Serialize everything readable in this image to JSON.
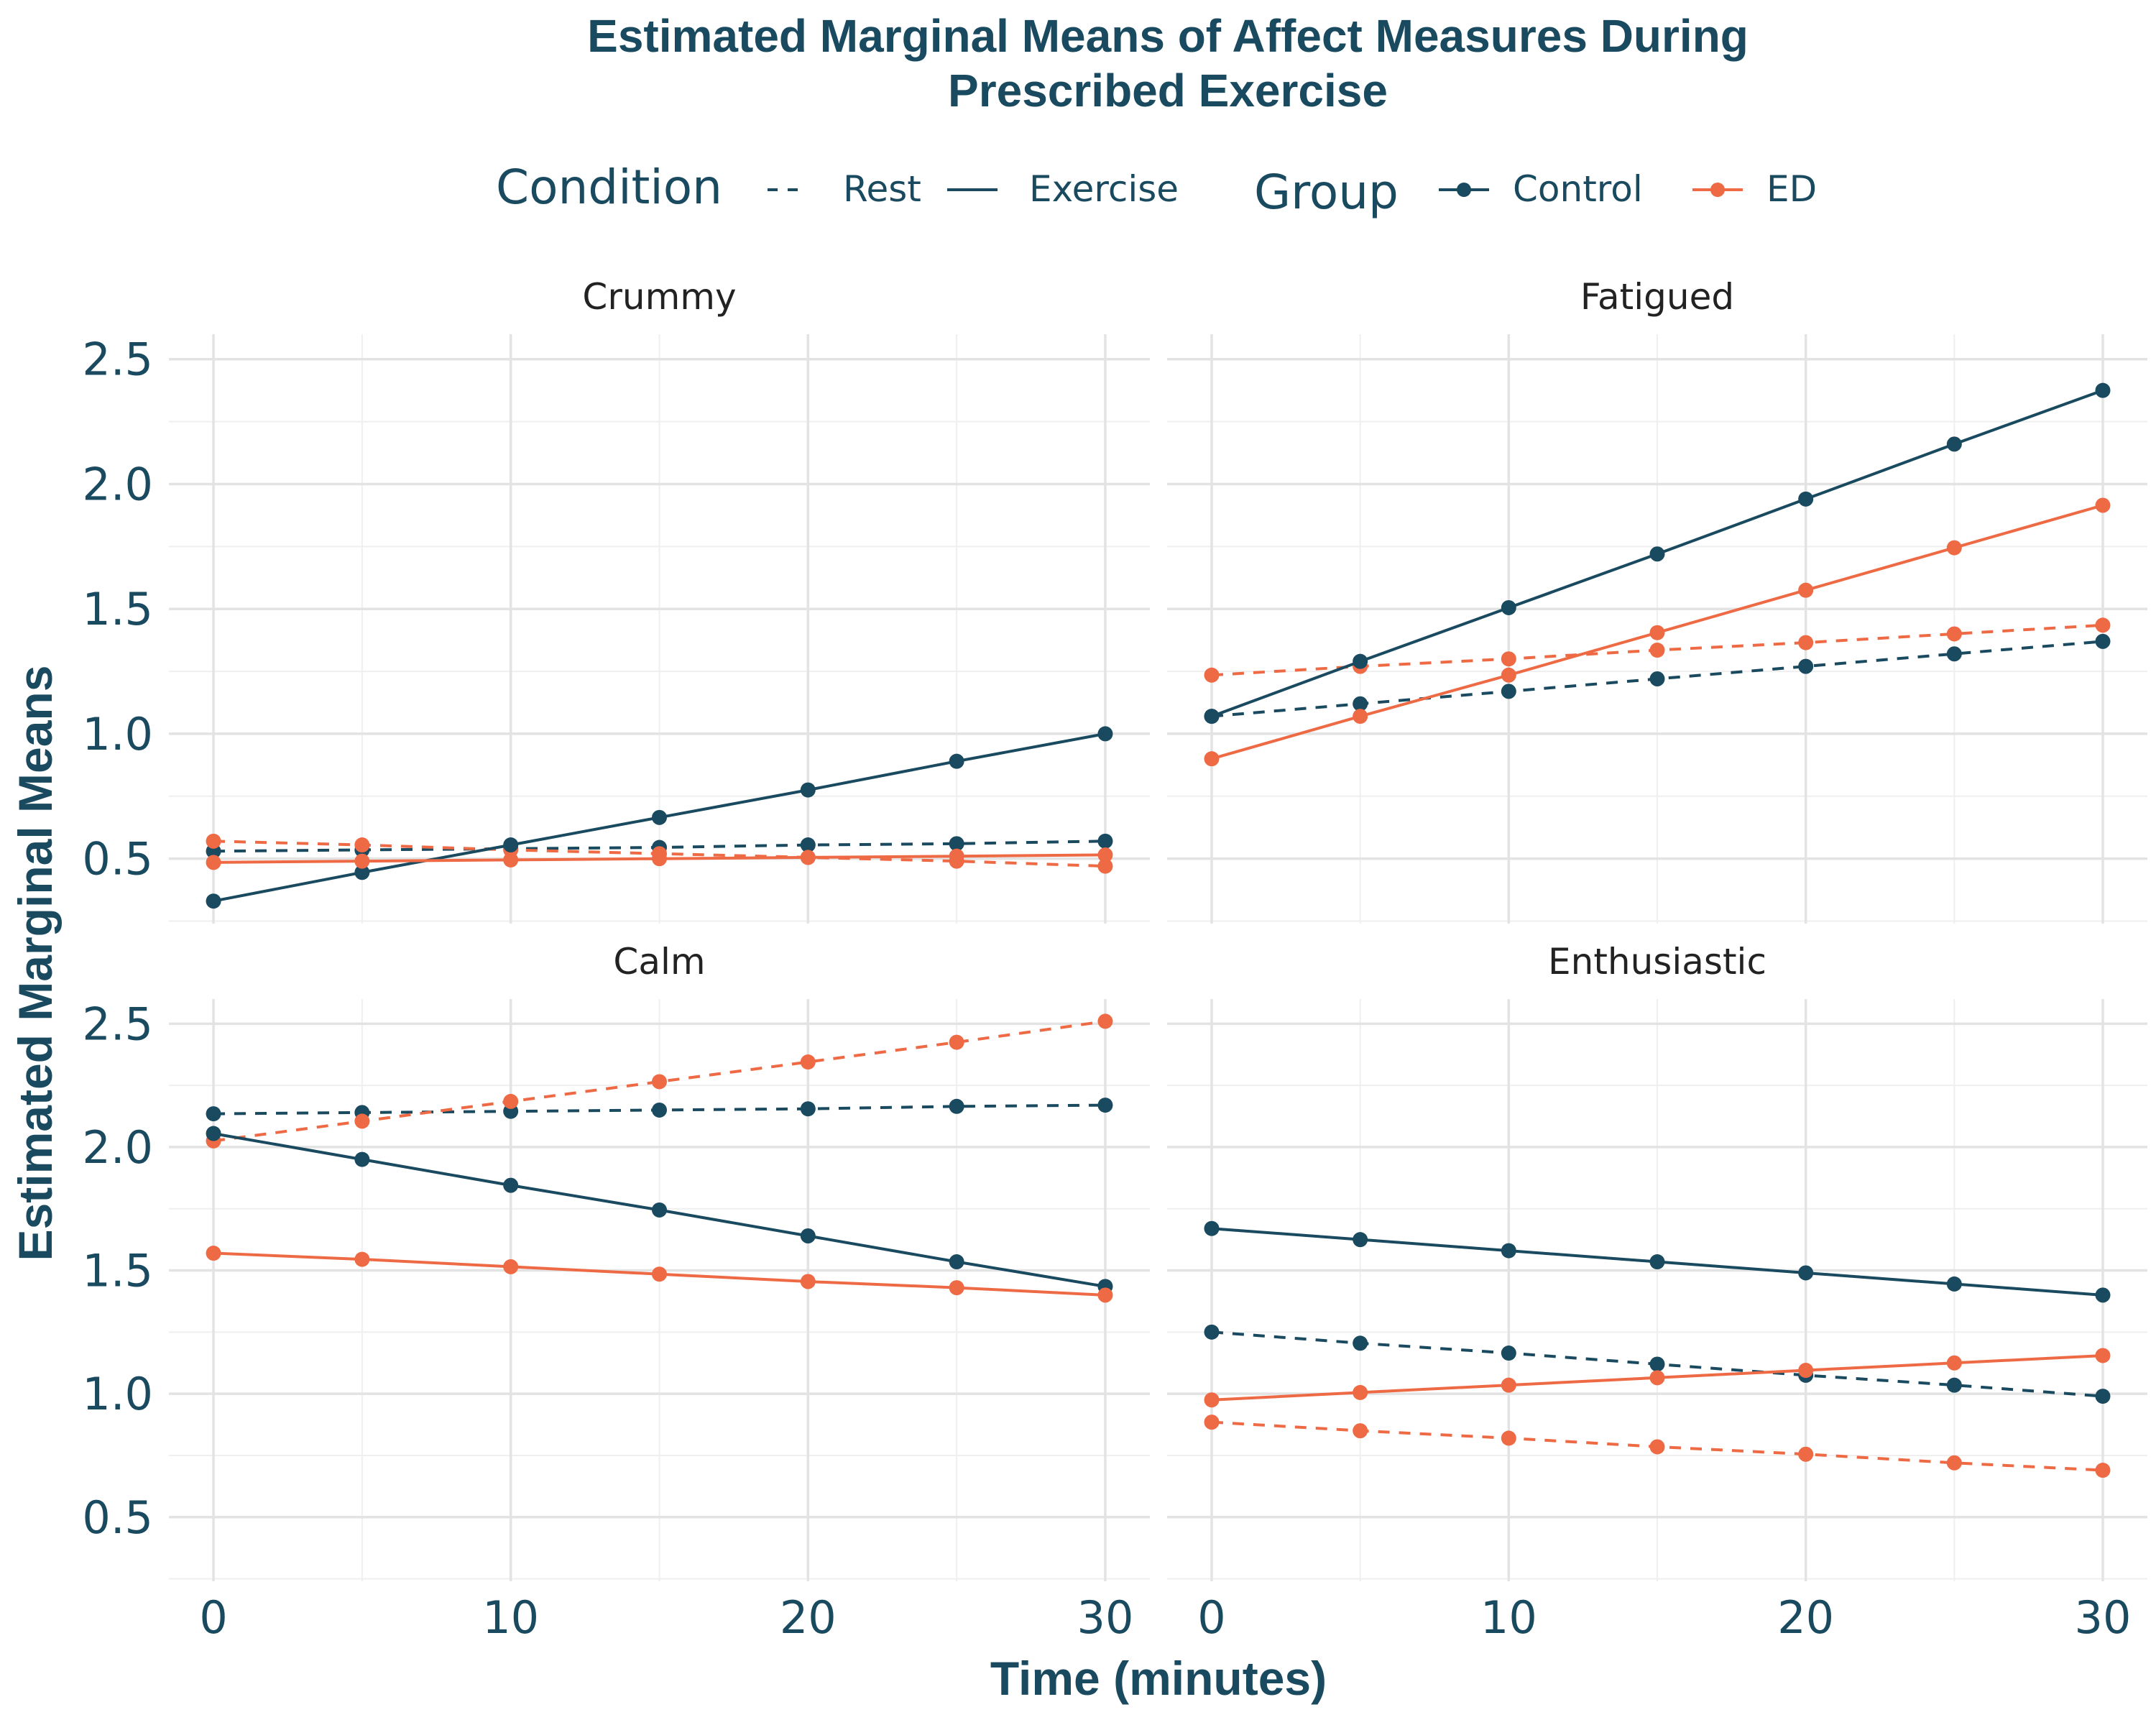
{
  "chart_data": {
    "type": "line",
    "title_lines": [
      "Estimated Marginal Means of Affect Measures During",
      "Prescribed Exercise"
    ],
    "xlabel": "Time (minutes)",
    "ylabel": "Estimated Marginal Means",
    "x": [
      0,
      5,
      10,
      15,
      20,
      25,
      30
    ],
    "x_ticks": [
      0,
      10,
      20,
      30
    ],
    "y_ticks": [
      0.5,
      1.0,
      1.5,
      2.0,
      2.5
    ],
    "y_tick_labels": [
      "0.5",
      "1.0",
      "1.5",
      "2.0",
      "2.5"
    ],
    "xlim": [
      -1.5,
      31.5
    ],
    "ylim": [
      0.24,
      2.6
    ],
    "grid": true,
    "legend": {
      "position": "top",
      "condition_title": "Condition",
      "condition_items": [
        {
          "label": "Rest",
          "dash": "dashed"
        },
        {
          "label": "Exercise",
          "dash": "solid"
        }
      ],
      "group_title": "Group",
      "group_items": [
        {
          "label": "Control",
          "color": "#1a4a5f"
        },
        {
          "label": "ED",
          "color": "#ee6a45"
        }
      ]
    },
    "panels": [
      {
        "title": "Crummy",
        "series": [
          {
            "group": "Control",
            "condition": "Rest",
            "values": [
              0.53,
              0.535,
              0.54,
              0.545,
              0.555,
              0.56,
              0.57
            ]
          },
          {
            "group": "ED",
            "condition": "Rest",
            "values": [
              0.57,
              0.555,
              0.535,
              0.52,
              0.505,
              0.49,
              0.47
            ]
          },
          {
            "group": "Control",
            "condition": "Exercise",
            "values": [
              0.33,
              0.445,
              0.555,
              0.665,
              0.775,
              0.89,
              1.0
            ]
          },
          {
            "group": "ED",
            "condition": "Exercise",
            "values": [
              0.485,
              0.49,
              0.495,
              0.5,
              0.505,
              0.51,
              0.515
            ]
          }
        ]
      },
      {
        "title": "Fatigued",
        "series": [
          {
            "group": "Control",
            "condition": "Rest",
            "values": [
              1.07,
              1.12,
              1.17,
              1.22,
              1.27,
              1.32,
              1.37
            ]
          },
          {
            "group": "ED",
            "condition": "Rest",
            "values": [
              1.235,
              1.27,
              1.3,
              1.335,
              1.365,
              1.4,
              1.435
            ]
          },
          {
            "group": "Control",
            "condition": "Exercise",
            "values": [
              1.07,
              1.29,
              1.505,
              1.72,
              1.94,
              2.16,
              2.375
            ]
          },
          {
            "group": "ED",
            "condition": "Exercise",
            "values": [
              0.9,
              1.07,
              1.235,
              1.405,
              1.575,
              1.745,
              1.915
            ]
          }
        ]
      },
      {
        "title": "Calm",
        "series": [
          {
            "group": "Control",
            "condition": "Rest",
            "values": [
              2.135,
              2.14,
              2.145,
              2.15,
              2.155,
              2.165,
              2.17
            ]
          },
          {
            "group": "ED",
            "condition": "Rest",
            "values": [
              2.025,
              2.105,
              2.185,
              2.265,
              2.345,
              2.425,
              2.51
            ]
          },
          {
            "group": "Control",
            "condition": "Exercise",
            "values": [
              2.055,
              1.95,
              1.845,
              1.745,
              1.64,
              1.535,
              1.435
            ]
          },
          {
            "group": "ED",
            "condition": "Exercise",
            "values": [
              1.57,
              1.545,
              1.515,
              1.485,
              1.455,
              1.43,
              1.4
            ]
          }
        ]
      },
      {
        "title": "Enthusiastic",
        "series": [
          {
            "group": "Control",
            "condition": "Rest",
            "values": [
              1.25,
              1.205,
              1.165,
              1.12,
              1.075,
              1.035,
              0.99
            ]
          },
          {
            "group": "ED",
            "condition": "Rest",
            "values": [
              0.885,
              0.85,
              0.82,
              0.785,
              0.755,
              0.72,
              0.69
            ]
          },
          {
            "group": "Control",
            "condition": "Exercise",
            "values": [
              1.67,
              1.625,
              1.58,
              1.535,
              1.49,
              1.445,
              1.4
            ]
          },
          {
            "group": "ED",
            "condition": "Exercise",
            "values": [
              0.975,
              1.005,
              1.035,
              1.065,
              1.095,
              1.125,
              1.155
            ]
          }
        ]
      }
    ]
  }
}
